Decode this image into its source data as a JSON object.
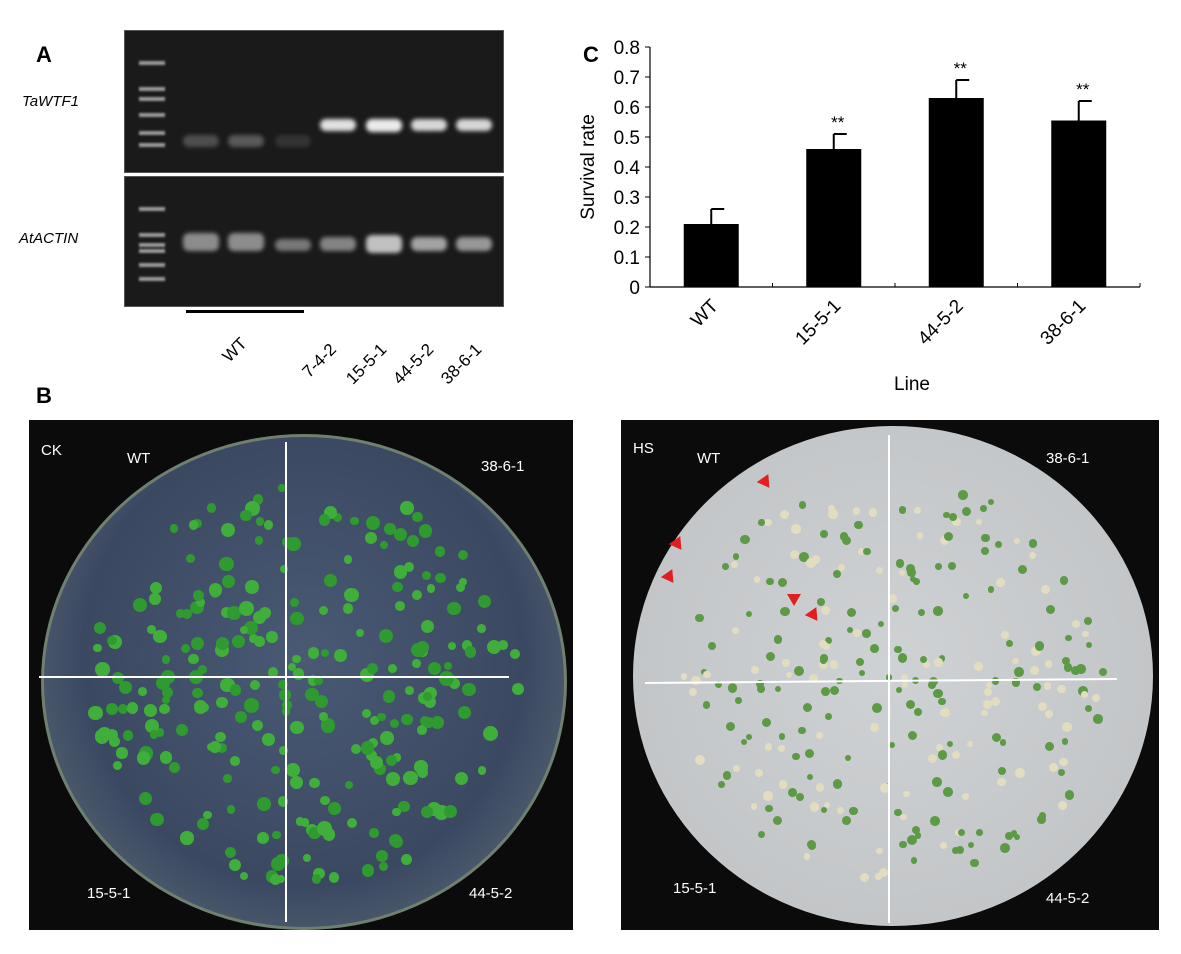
{
  "panels": {
    "a": "A",
    "b": "B",
    "c": "C"
  },
  "gel": {
    "genes": [
      "TaWTF1",
      "AtACTIN"
    ],
    "lane_labels": [
      "WT",
      "7-4-2",
      "15-5-1",
      "44-5-2",
      "38-6-1"
    ]
  },
  "photos": {
    "ck": {
      "condition": "CK",
      "quadrants": [
        "WT",
        "38-6-1",
        "15-5-1",
        "44-5-2"
      ]
    },
    "hs": {
      "condition": "HS",
      "quadrants": [
        "WT",
        "38-6-1",
        "15-5-1",
        "44-5-2"
      ]
    }
  },
  "colors": {
    "bar": "#000000",
    "seedling": "#3fae3a",
    "arrow": "#e02020"
  },
  "chart_data": {
    "type": "bar",
    "title": "",
    "xlabel": "Line",
    "ylabel": "Survival rate",
    "categories": [
      "WT",
      "15-5-1",
      "44-5-2",
      "38-6-1"
    ],
    "values": [
      0.21,
      0.46,
      0.63,
      0.555
    ],
    "errors": [
      0.05,
      0.05,
      0.06,
      0.065
    ],
    "annotations": [
      "",
      "**",
      "**",
      "**"
    ],
    "ylim": [
      0,
      0.8
    ],
    "yticks": [
      "0",
      "0.1",
      "0.2",
      "0.3",
      "0.4",
      "0.5",
      "0.6",
      "0.7",
      "0.8"
    ],
    "grid": false
  }
}
